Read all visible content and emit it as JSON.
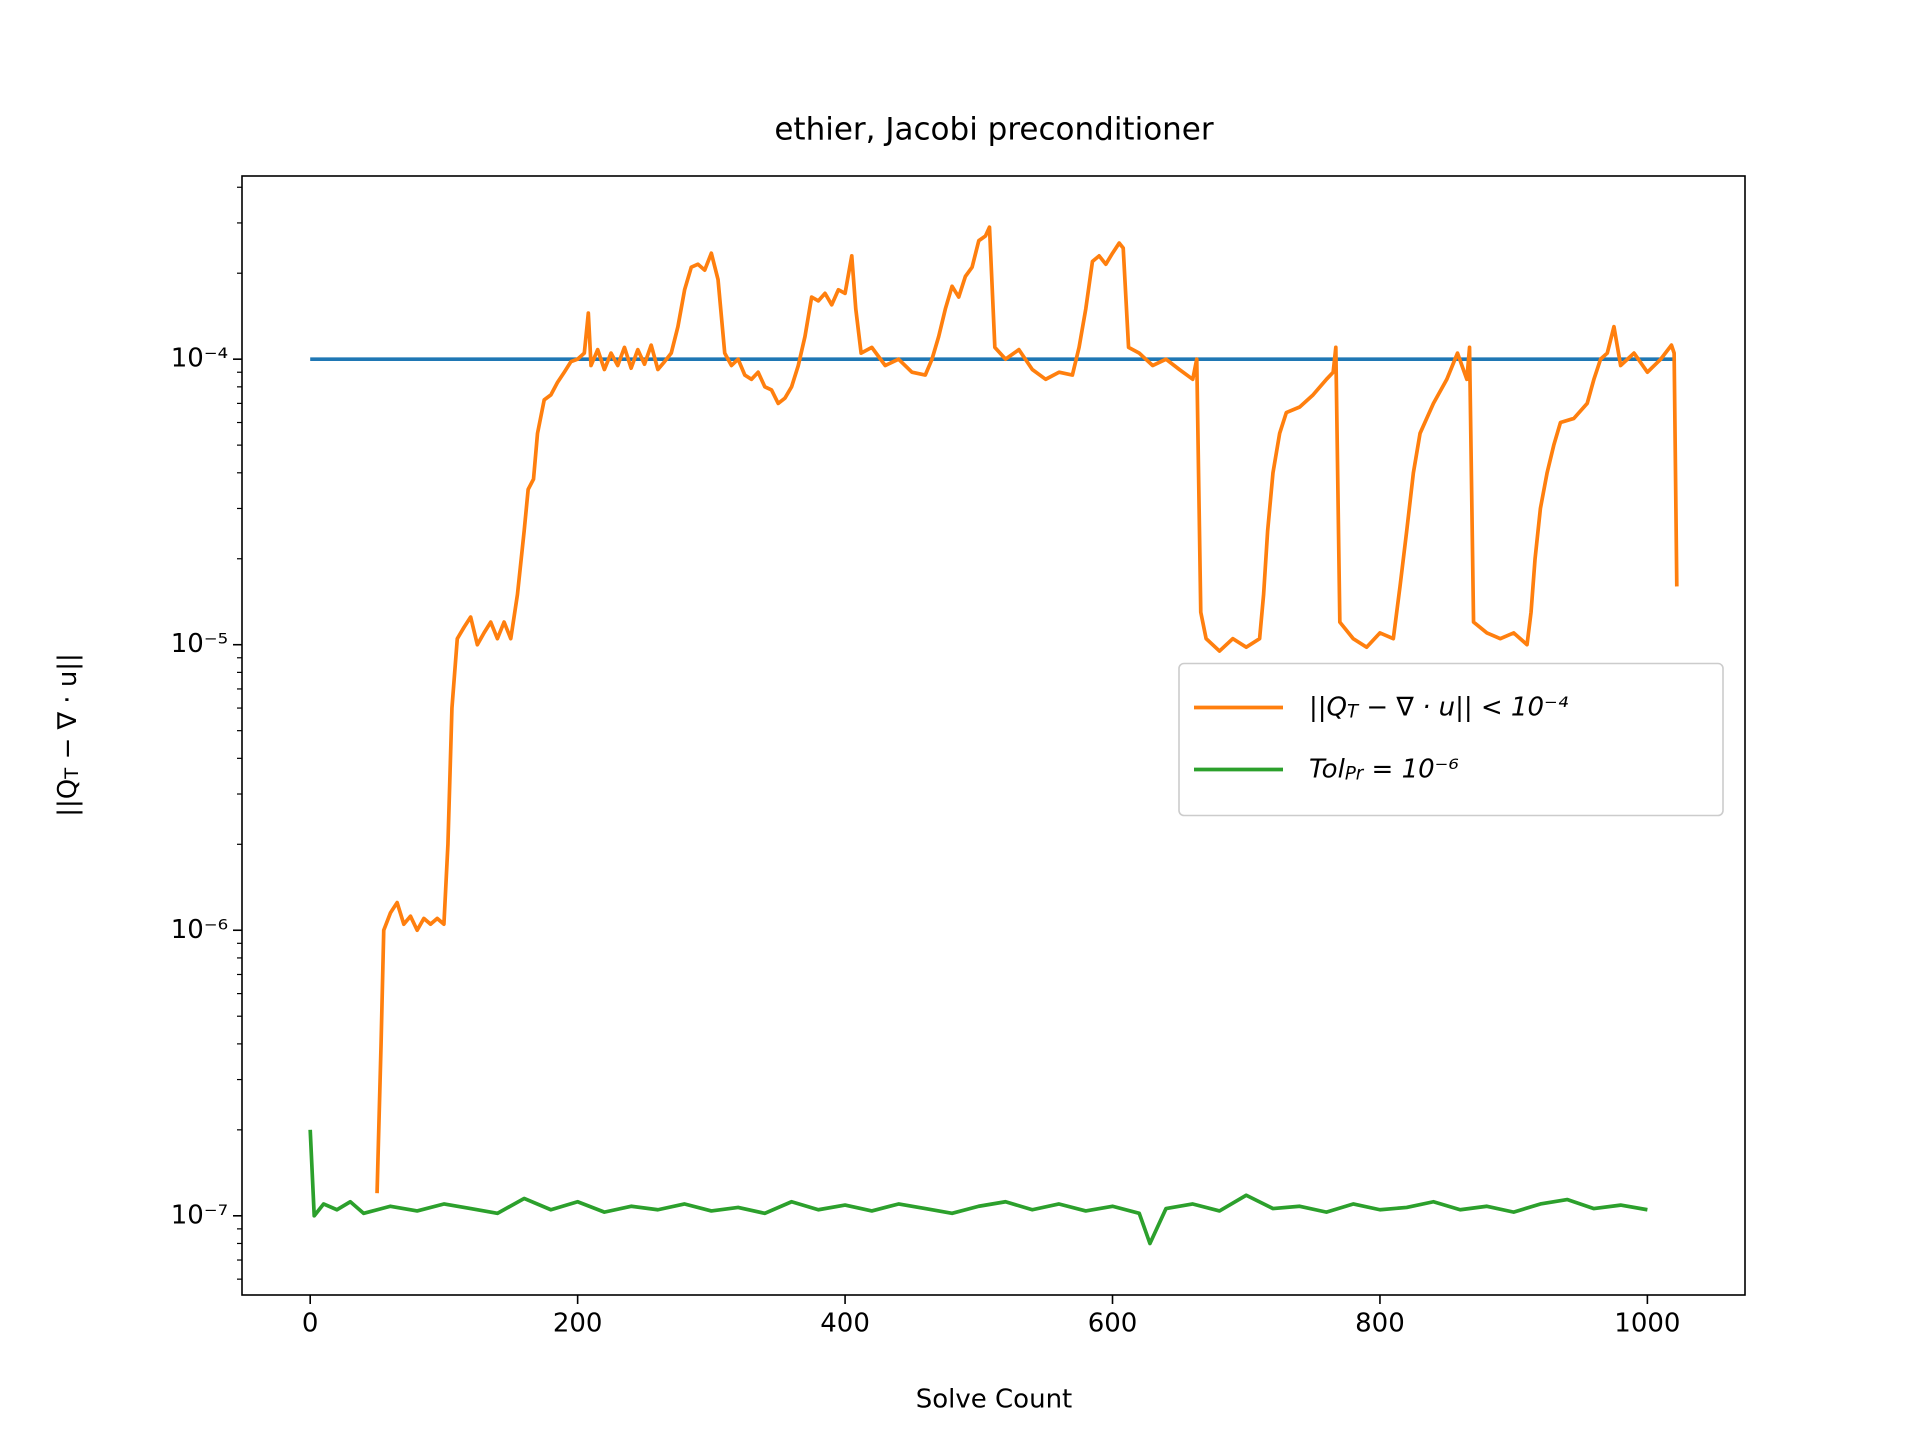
{
  "chart_data": {
    "type": "line",
    "title": "ethier, Jacobi preconditioner",
    "xlabel": "Solve Count",
    "ylabel": "||Q_T − ∇ · u||",
    "xlim": [
      -51,
      1073
    ],
    "ylim": [
      5.28e-08,
      0.000438
    ],
    "yscale": "log",
    "xticks": [
      0,
      200,
      400,
      600,
      800,
      1000
    ],
    "yticks": [
      {
        "value": 1e-07,
        "label": "10⁻⁷"
      },
      {
        "value": 1e-06,
        "label": "10⁻⁶"
      },
      {
        "value": 1e-05,
        "label": "10⁻⁵"
      },
      {
        "value": 0.0001,
        "label": "10⁻⁴"
      }
    ],
    "grid": false,
    "legend": "center right",
    "series": [
      {
        "color": "#1f77b4",
        "x": [
          0,
          1020
        ],
        "values": [
          0.0001,
          0.0001
        ]
      },
      {
        "name": "||Q_T − ∇ · u|| < 10⁻⁴",
        "color": "#ff7f0e",
        "x": [
          50,
          53,
          55,
          60,
          65,
          70,
          75,
          80,
          85,
          90,
          95,
          100,
          103,
          106,
          110,
          115,
          120,
          125,
          130,
          135,
          140,
          145,
          150,
          155,
          160,
          163,
          167,
          170,
          175,
          180,
          185,
          190,
          195,
          200,
          205,
          208,
          210,
          215,
          220,
          225,
          230,
          235,
          240,
          245,
          250,
          255,
          260,
          265,
          270,
          275,
          280,
          285,
          290,
          295,
          300,
          305,
          310,
          315,
          320,
          325,
          330,
          335,
          340,
          345,
          350,
          355,
          360,
          365,
          370,
          375,
          380,
          385,
          390,
          395,
          400,
          405,
          408,
          412,
          420,
          430,
          440,
          450,
          460,
          465,
          470,
          475,
          480,
          485,
          490,
          495,
          500,
          505,
          508,
          512,
          520,
          530,
          540,
          550,
          560,
          570,
          575,
          580,
          585,
          590,
          595,
          600,
          605,
          608,
          612,
          620,
          630,
          640,
          650,
          660,
          663,
          666,
          670,
          680,
          690,
          700,
          710,
          713,
          716,
          720,
          725,
          730,
          740,
          750,
          760,
          765,
          767,
          770,
          780,
          790,
          800,
          810,
          815,
          820,
          825,
          830,
          840,
          850,
          858,
          865,
          867,
          870,
          880,
          890,
          900,
          910,
          913,
          916,
          920,
          925,
          930,
          935,
          945,
          955,
          960,
          965,
          970,
          975,
          980,
          990,
          1000,
          1010,
          1018,
          1020,
          1022
        ],
        "values": [
          1.2e-07,
          4e-07,
          1e-06,
          1.15e-06,
          1.25e-06,
          1.05e-06,
          1.12e-06,
          1e-06,
          1.1e-06,
          1.05e-06,
          1.1e-06,
          1.05e-06,
          2e-06,
          6e-06,
          1.05e-05,
          1.15e-05,
          1.25e-05,
          1e-05,
          1.1e-05,
          1.2e-05,
          1.05e-05,
          1.2e-05,
          1.05e-05,
          1.5e-05,
          2.5e-05,
          3.5e-05,
          3.8e-05,
          5.5e-05,
          7.2e-05,
          7.5e-05,
          8.3e-05,
          9e-05,
          9.8e-05,
          0.0001,
          0.000105,
          0.000145,
          9.5e-05,
          0.000108,
          9.2e-05,
          0.000105,
          9.5e-05,
          0.00011,
          9.3e-05,
          0.000108,
          9.6e-05,
          0.000112,
          9.2e-05,
          9.8e-05,
          0.000105,
          0.00013,
          0.000175,
          0.00021,
          0.000215,
          0.000205,
          0.000235,
          0.00019,
          0.000105,
          9.5e-05,
          0.0001,
          8.8e-05,
          8.5e-05,
          9e-05,
          8e-05,
          7.8e-05,
          7e-05,
          7.3e-05,
          8e-05,
          9.5e-05,
          0.00012,
          0.000165,
          0.00016,
          0.00017,
          0.000155,
          0.000175,
          0.00017,
          0.00023,
          0.00015,
          0.000105,
          0.00011,
          9.5e-05,
          0.0001,
          9e-05,
          8.8e-05,
          0.0001,
          0.00012,
          0.00015,
          0.00018,
          0.000165,
          0.000195,
          0.00021,
          0.00026,
          0.00027,
          0.00029,
          0.00011,
          0.0001,
          0.000108,
          9.2e-05,
          8.5e-05,
          9e-05,
          8.8e-05,
          0.00011,
          0.00015,
          0.00022,
          0.00023,
          0.000215,
          0.000235,
          0.000255,
          0.000245,
          0.00011,
          0.000105,
          9.5e-05,
          0.0001,
          9.2e-05,
          8.5e-05,
          0.0001,
          1.3e-05,
          1.05e-05,
          9.5e-06,
          1.05e-05,
          9.8e-06,
          1.05e-05,
          1.5e-05,
          2.5e-05,
          4e-05,
          5.5e-05,
          6.5e-05,
          6.8e-05,
          7.5e-05,
          8.5e-05,
          9e-05,
          0.00011,
          1.2e-05,
          1.05e-05,
          9.8e-06,
          1.1e-05,
          1.05e-05,
          1.6e-05,
          2.5e-05,
          4e-05,
          5.5e-05,
          7e-05,
          8.5e-05,
          0.000105,
          8.5e-05,
          0.00011,
          1.2e-05,
          1.1e-05,
          1.05e-05,
          1.1e-05,
          1e-05,
          1.3e-05,
          2e-05,
          3e-05,
          4e-05,
          5e-05,
          6e-05,
          6.2e-05,
          7e-05,
          8.5e-05,
          0.0001,
          0.000105,
          0.00013,
          9.5e-05,
          0.000105,
          9e-05,
          0.0001,
          0.000112,
          0.000105,
          1.6e-05
        ]
      },
      {
        "name": "Tol_{Pr} = 10⁻⁶",
        "color": "#2ca02c",
        "x": [
          0,
          3,
          10,
          20,
          30,
          40,
          60,
          80,
          100,
          120,
          140,
          160,
          180,
          200,
          220,
          240,
          260,
          280,
          300,
          320,
          340,
          360,
          380,
          400,
          420,
          440,
          460,
          480,
          500,
          520,
          540,
          560,
          580,
          600,
          620,
          628,
          640,
          660,
          680,
          700,
          720,
          740,
          760,
          780,
          800,
          820,
          840,
          860,
          880,
          900,
          920,
          940,
          960,
          980,
          1000
        ],
        "values": [
          2e-07,
          1e-07,
          1.1e-07,
          1.05e-07,
          1.12e-07,
          1.02e-07,
          1.08e-07,
          1.04e-07,
          1.1e-07,
          1.06e-07,
          1.02e-07,
          1.15e-07,
          1.05e-07,
          1.12e-07,
          1.03e-07,
          1.08e-07,
          1.05e-07,
          1.1e-07,
          1.04e-07,
          1.07e-07,
          1.02e-07,
          1.12e-07,
          1.05e-07,
          1.09e-07,
          1.04e-07,
          1.1e-07,
          1.06e-07,
          1.02e-07,
          1.08e-07,
          1.12e-07,
          1.05e-07,
          1.1e-07,
          1.04e-07,
          1.08e-07,
          1.02e-07,
          8e-08,
          1.06e-07,
          1.1e-07,
          1.04e-07,
          1.18e-07,
          1.06e-07,
          1.08e-07,
          1.03e-07,
          1.1e-07,
          1.05e-07,
          1.07e-07,
          1.12e-07,
          1.05e-07,
          1.08e-07,
          1.03e-07,
          1.1e-07,
          1.14e-07,
          1.06e-07,
          1.09e-07,
          1.05e-07
        ]
      }
    ]
  }
}
